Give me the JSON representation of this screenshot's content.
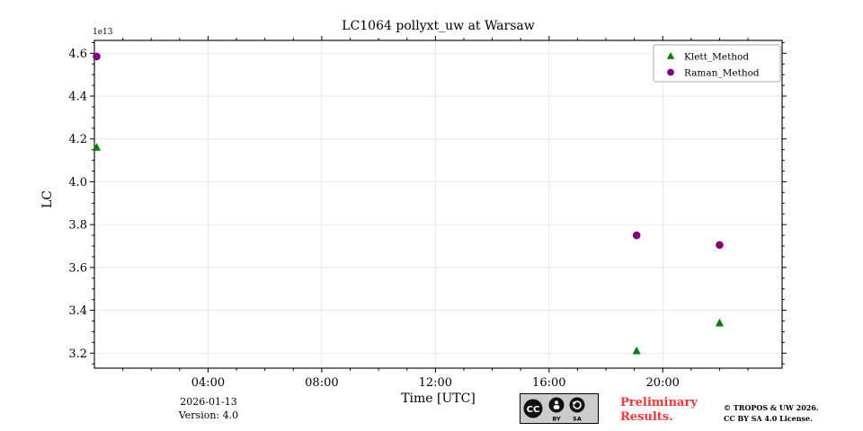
{
  "chart_data": {
    "type": "scatter",
    "title": "LC1064 pollyxt_uw at Warsaw",
    "xlabel": "Time [UTC]",
    "ylabel": "LC",
    "offset_text": "1e13",
    "x_unit": "hours_utc",
    "xlim": [
      0,
      24.2
    ],
    "ylim": [
      3.13,
      4.66
    ],
    "grid": true,
    "grid_color": "#e0e0e0",
    "x_ticks": [
      {
        "value": 4,
        "label": "04:00"
      },
      {
        "value": 8,
        "label": "08:00"
      },
      {
        "value": 12,
        "label": "12:00"
      },
      {
        "value": 16,
        "label": "16:00"
      },
      {
        "value": 20,
        "label": "20:00"
      }
    ],
    "y_ticks": [
      {
        "value": 3.2,
        "label": "3.2"
      },
      {
        "value": 3.4,
        "label": "3.4"
      },
      {
        "value": 3.6,
        "label": "3.6"
      },
      {
        "value": 3.8,
        "label": "3.8"
      },
      {
        "value": 4.0,
        "label": "4.0"
      },
      {
        "value": 4.2,
        "label": "4.2"
      },
      {
        "value": 4.4,
        "label": "4.4"
      },
      {
        "value": 4.6,
        "label": "4.6"
      }
    ],
    "x_minor_step": 1,
    "y_minor_step": 0.05,
    "y_scale_factor": "1e13",
    "legend_position": "top-right",
    "series": [
      {
        "name": "Klett_Method",
        "marker": "triangle",
        "color": "#008000",
        "points": [
          {
            "x": 0.08,
            "y": 4.16
          },
          {
            "x": 19.08,
            "y": 3.21
          },
          {
            "x": 22.0,
            "y": 3.34
          }
        ]
      },
      {
        "name": "Raman_Method",
        "marker": "circle",
        "color": "#800080",
        "points": [
          {
            "x": 0.08,
            "y": 4.585
          },
          {
            "x": 19.08,
            "y": 3.75
          },
          {
            "x": 22.0,
            "y": 3.705
          }
        ]
      }
    ]
  },
  "footer": {
    "date": "2026-01-13",
    "version": "Version: 4.0",
    "preliminary_line1": "Preliminary",
    "preliminary_line2": "Results.",
    "preliminary_color": "#ff3333",
    "copyright_line1": "© TROPOS & UW 2026.",
    "copyright_line2": "CC BY SA 4.0 License.",
    "badge_name": "cc-by-sa-badge",
    "badge_cc": "CC",
    "badge_by": "BY",
    "badge_sa": "SA"
  }
}
